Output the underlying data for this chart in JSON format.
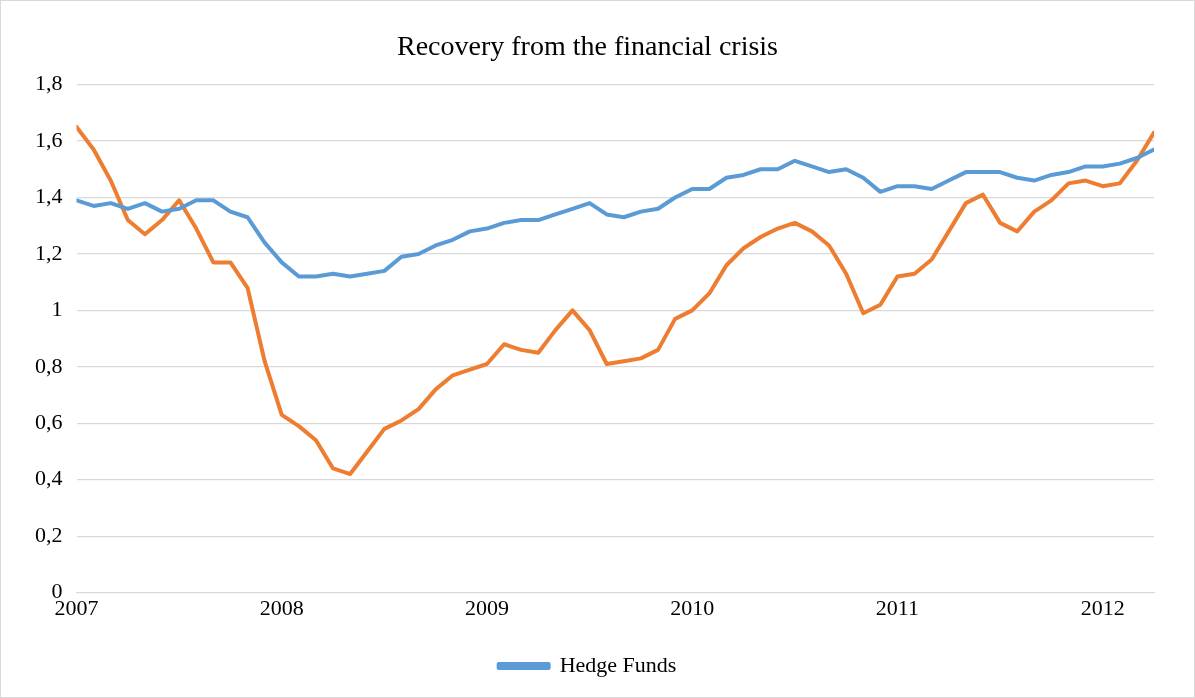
{
  "chart_data": {
    "type": "line",
    "title": "Recovery from the financial crisis",
    "x": [
      "2007-01",
      "2007-02",
      "2007-03",
      "2007-04",
      "2007-05",
      "2007-06",
      "2007-07",
      "2007-08",
      "2007-09",
      "2007-10",
      "2007-11",
      "2007-12",
      "2008-01",
      "2008-02",
      "2008-03",
      "2008-04",
      "2008-05",
      "2008-06",
      "2008-07",
      "2008-08",
      "2008-09",
      "2008-10",
      "2008-11",
      "2008-12",
      "2009-01",
      "2009-02",
      "2009-03",
      "2009-04",
      "2009-05",
      "2009-06",
      "2009-07",
      "2009-08",
      "2009-09",
      "2009-10",
      "2009-11",
      "2009-12",
      "2010-01",
      "2010-02",
      "2010-03",
      "2010-04",
      "2010-05",
      "2010-06",
      "2010-07",
      "2010-08",
      "2010-09",
      "2010-10",
      "2010-11",
      "2010-12",
      "2011-01",
      "2011-02",
      "2011-03",
      "2011-04",
      "2011-05",
      "2011-06",
      "2011-07",
      "2011-08",
      "2011-09",
      "2011-10",
      "2011-11",
      "2011-12",
      "2012-01",
      "2012-02",
      "2012-03",
      "2012-04"
    ],
    "series": [
      {
        "name": "Hedge Funds",
        "color": "#5b9bd5",
        "values": [
          1.39,
          1.37,
          1.38,
          1.36,
          1.38,
          1.35,
          1.36,
          1.39,
          1.39,
          1.35,
          1.33,
          1.24,
          1.17,
          1.12,
          1.12,
          1.13,
          1.12,
          1.13,
          1.14,
          1.19,
          1.2,
          1.23,
          1.25,
          1.28,
          1.29,
          1.31,
          1.32,
          1.32,
          1.34,
          1.36,
          1.38,
          1.34,
          1.33,
          1.35,
          1.36,
          1.4,
          1.43,
          1.43,
          1.47,
          1.48,
          1.5,
          1.5,
          1.53,
          1.51,
          1.49,
          1.5,
          1.47,
          1.42,
          1.44,
          1.44,
          1.43,
          1.46,
          1.49,
          1.49,
          1.49,
          1.47,
          1.46,
          1.48,
          1.49,
          1.51,
          1.51,
          1.52,
          1.54,
          1.57
        ]
      },
      {
        "color": "#ed7d31",
        "values": [
          1.65,
          1.57,
          1.46,
          1.32,
          1.27,
          1.32,
          1.39,
          1.29,
          1.17,
          1.17,
          1.08,
          0.82,
          0.63,
          0.59,
          0.54,
          0.44,
          0.42,
          0.5,
          0.58,
          0.61,
          0.65,
          0.72,
          0.77,
          0.79,
          0.81,
          0.88,
          0.86,
          0.85,
          0.93,
          1.0,
          0.93,
          0.81,
          0.82,
          0.83,
          0.86,
          0.97,
          1.0,
          1.06,
          1.16,
          1.22,
          1.26,
          1.29,
          1.31,
          1.28,
          1.23,
          1.13,
          0.99,
          1.02,
          1.12,
          1.13,
          1.18,
          1.28,
          1.38,
          1.41,
          1.31,
          1.28,
          1.35,
          1.39,
          1.45,
          1.46,
          1.44,
          1.45,
          1.53,
          1.63
        ]
      }
    ],
    "xlim": [
      "2007-01",
      "2012-04"
    ],
    "xticks": [
      "2007",
      "2008",
      "2009",
      "2010",
      "2011",
      "2012"
    ],
    "ylim": [
      0,
      1.8
    ],
    "yticks": [
      0,
      {
        "value": 0.2,
        "label": "0,2"
      },
      {
        "value": 0.4,
        "label": "0,4"
      },
      {
        "value": 0.6,
        "label": "0,6"
      },
      {
        "value": 0.8,
        "label": "0,8"
      },
      1,
      {
        "value": 1.2,
        "label": "1,2"
      },
      {
        "value": 1.4,
        "label": "1,4"
      },
      {
        "value": 1.6,
        "label": "1,6"
      },
      {
        "value": 1.8,
        "label": "1,8"
      }
    ],
    "grid": "y",
    "legend": "bottom",
    "marker": "none",
    "line_style": "solid"
  }
}
